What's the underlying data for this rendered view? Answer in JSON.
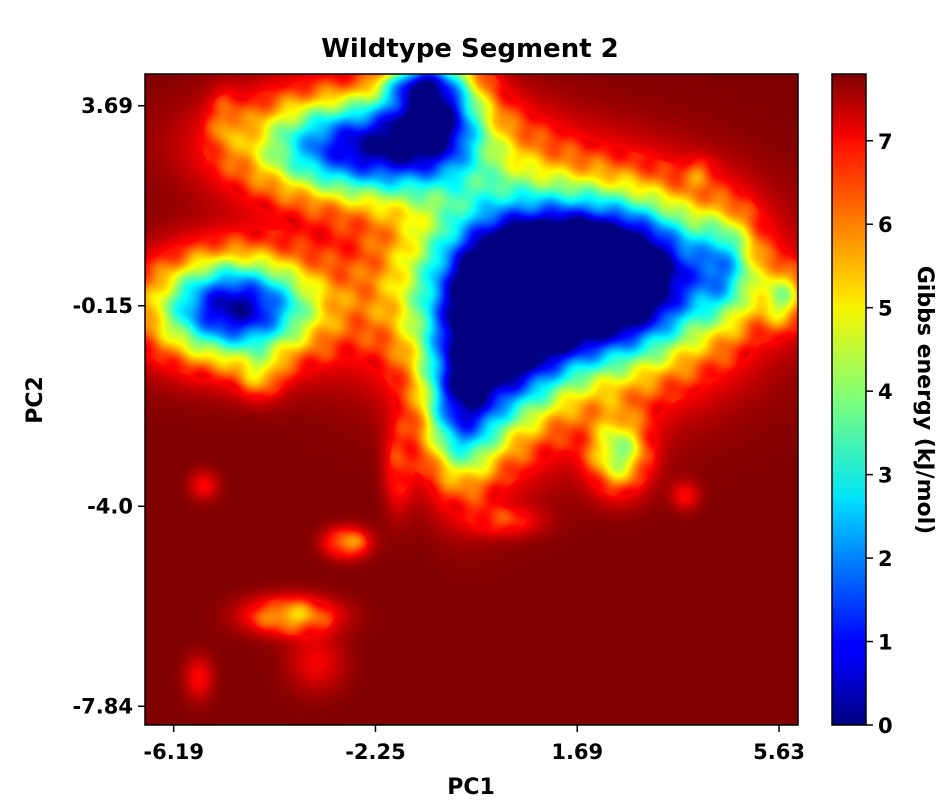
{
  "chart_data": {
    "type": "heatmap",
    "title": "Wildtype Segment 2",
    "xlabel": "PC1",
    "ylabel": "PC2",
    "xticks": [
      "-6.19",
      "-2.25",
      "1.69",
      "5.63"
    ],
    "yticks": [
      "3.69",
      "-0.15",
      "-4.0",
      "-7.84"
    ],
    "xlim": [
      -6.75,
      6.0
    ],
    "ylim": [
      -8.2,
      4.3
    ],
    "colorbar": {
      "label": "Gibbs energy (kJ/mol)",
      "ticks": [
        "0",
        "1",
        "2",
        "3",
        "4",
        "5",
        "6",
        "7"
      ],
      "range": [
        0,
        7.8
      ],
      "colormap": "jet"
    },
    "background_value": 7.8,
    "wells": [
      {
        "x": 1.2,
        "y": 0.2,
        "sx": 2.0,
        "sy": 1.3,
        "depth": 7.8
      },
      {
        "x": 2.3,
        "y": 0.5,
        "sx": 1.4,
        "sy": 0.9,
        "depth": 5.5
      },
      {
        "x": 0.2,
        "y": -0.8,
        "sx": 0.8,
        "sy": 1.4,
        "depth": 4.8
      },
      {
        "x": -0.6,
        "y": -2.2,
        "sx": 0.5,
        "sy": 1.0,
        "depth": 4.5
      },
      {
        "x": -5.0,
        "y": -0.2,
        "sx": 1.1,
        "sy": 0.7,
        "depth": 7.5
      },
      {
        "x": -2.4,
        "y": 2.9,
        "sx": 1.6,
        "sy": 0.7,
        "depth": 7.2
      },
      {
        "x": -1.1,
        "y": 3.8,
        "sx": 0.6,
        "sy": 0.7,
        "depth": 5.6
      },
      {
        "x": -3.9,
        "y": -6.1,
        "sx": 0.6,
        "sy": 0.25,
        "depth": 2.5
      },
      {
        "x": -2.8,
        "y": -4.7,
        "sx": 0.3,
        "sy": 0.2,
        "depth": 2.2
      },
      {
        "x": 2.5,
        "y": -3.0,
        "sx": 0.4,
        "sy": 0.5,
        "depth": 3.5
      },
      {
        "x": 4.6,
        "y": 0.6,
        "sx": 0.4,
        "sy": 0.7,
        "depth": 2.6
      },
      {
        "x": 5.7,
        "y": 0.0,
        "sx": 0.3,
        "sy": 0.4,
        "depth": 2.8
      },
      {
        "x": -4.5,
        "y": -1.5,
        "sx": 0.3,
        "sy": 0.3,
        "depth": 1.6
      },
      {
        "x": -5.6,
        "y": -3.6,
        "sx": 0.2,
        "sy": 0.2,
        "depth": 1.0
      },
      {
        "x": -1.8,
        "y": -3.3,
        "sx": 0.2,
        "sy": 0.6,
        "depth": 1.2
      },
      {
        "x": 0.3,
        "y": -4.3,
        "sx": 0.5,
        "sy": 0.2,
        "depth": 1.1
      },
      {
        "x": -5.7,
        "y": -7.3,
        "sx": 0.2,
        "sy": 0.3,
        "depth": 1.0
      },
      {
        "x": -3.4,
        "y": -7.0,
        "sx": 0.4,
        "sy": 0.4,
        "depth": 0.9
      },
      {
        "x": 3.8,
        "y": -3.8,
        "sx": 0.2,
        "sy": 0.2,
        "depth": 1.0
      },
      {
        "x": 4.1,
        "y": 2.4,
        "sx": 0.2,
        "sy": 0.2,
        "depth": 1.0
      },
      {
        "x": -5.2,
        "y": 3.4,
        "sx": 0.2,
        "sy": 0.4,
        "depth": 1.0
      },
      {
        "x": -1.5,
        "y": 4.1,
        "sx": 0.4,
        "sy": 0.2,
        "depth": 2.0
      }
    ]
  }
}
